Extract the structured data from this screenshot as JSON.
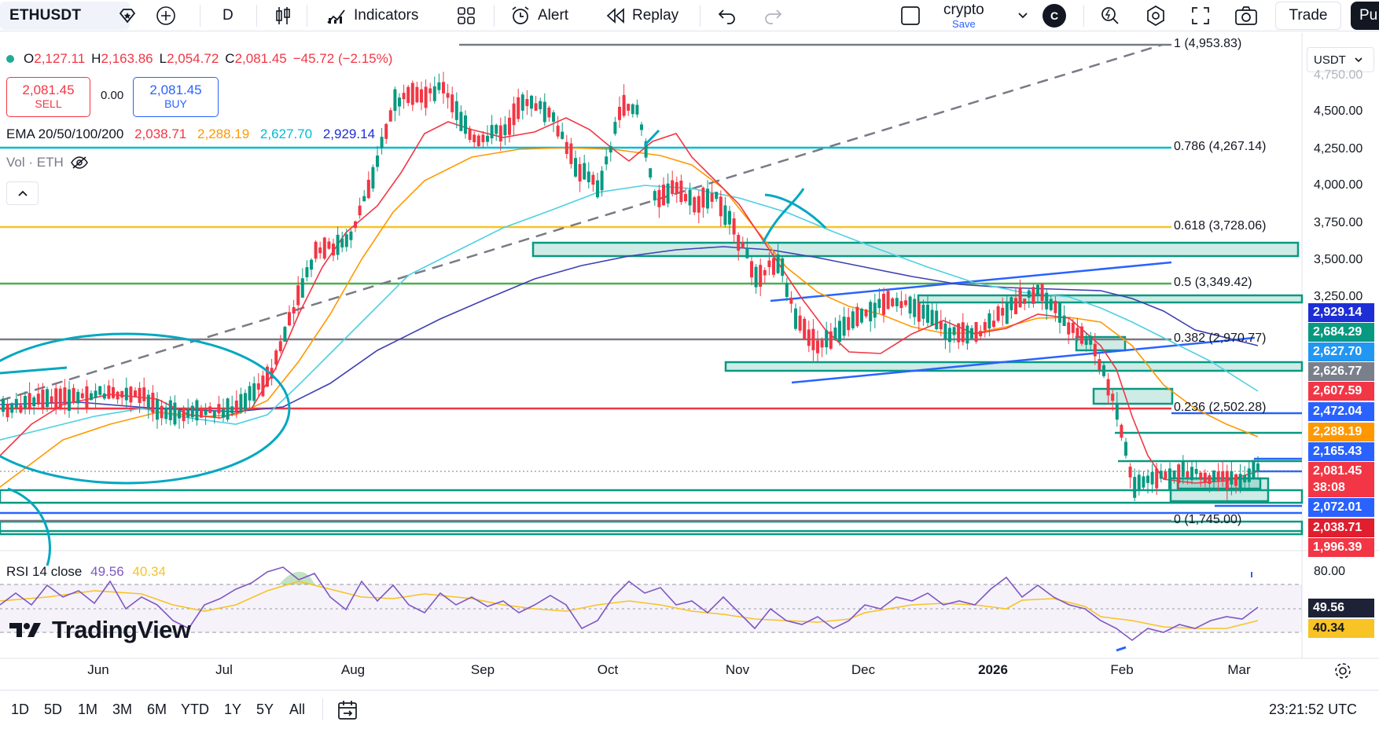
{
  "toolbar": {
    "symbol": "ETHUSDT",
    "interval": "D",
    "indicators_label": "Indicators",
    "alert_label": "Alert",
    "replay_label": "Replay",
    "layout_name": "crypto",
    "layout_save": "Save",
    "avatar_letter": "C",
    "trade_label": "Trade",
    "publish_label": "Pu"
  },
  "legend": {
    "open_label": "O",
    "open": "2,127.11",
    "high_label": "H",
    "high": "2,163.86",
    "low_label": "L",
    "low": "2,054.72",
    "close_label": "C",
    "close": "2,081.45",
    "change": "−45.72 (−2.15%)",
    "sell_price": "2,081.45",
    "sell_label": "SELL",
    "spread": "0.00",
    "buy_price": "2,081.45",
    "buy_label": "BUY",
    "ema_label": "EMA 20/50/100/200",
    "ema20": "2,038.71",
    "ema50": "2,288.19",
    "ema100": "2,627.70",
    "ema200": "2,929.14",
    "vol_label": "Vol · ETH"
  },
  "currency": "USDT",
  "price_axis": {
    "ticks": [
      "4,750.00",
      "4,500.00",
      "4,250.00",
      "4,000.00",
      "3,750.00",
      "3,500.00",
      "3,250.00",
      "80.00"
    ],
    "badges": [
      {
        "text": "2,929.14",
        "color": "#1e2ed6"
      },
      {
        "text": "2,684.29",
        "color": "#089981"
      },
      {
        "text": "2,627.70",
        "color": "#2196f3"
      },
      {
        "text": "2,626.77",
        "color": "#7a7f8c"
      },
      {
        "text": "2,607.59",
        "color": "#f23645"
      },
      {
        "text": "2,472.04",
        "color": "#2962ff"
      },
      {
        "text": "2,288.19",
        "color": "#ff9800"
      },
      {
        "text": "2,165.43",
        "color": "#2962ff"
      },
      {
        "text": "2,081.45",
        "color": "#f23645"
      },
      {
        "text": "38:08",
        "color": "#f23645"
      },
      {
        "text": "2,072.01",
        "color": "#2962ff"
      },
      {
        "text": "2,038.71",
        "color": "#e01e2e"
      },
      {
        "text": "1,996.39",
        "color": "#f23645"
      },
      {
        "text": "49.56",
        "color": "#1e2236"
      },
      {
        "text": "40.34",
        "color": "#f7c325"
      }
    ]
  },
  "fib_levels": [
    {
      "label": "1 (4,953.83)",
      "color": "#787b86"
    },
    {
      "label": "0.786 (4,267.14)",
      "color": "#00bcd4"
    },
    {
      "label": "0.618 (3,728.06)",
      "color": "#f7c325"
    },
    {
      "label": "0.5 (3,349.42)",
      "color": "#4caf50"
    },
    {
      "label": "0.382 (2,970.77)",
      "color": "#787b86"
    },
    {
      "label": "0.236 (2,502.28)",
      "color": "#f23645"
    },
    {
      "label": "0 (1,745.00)",
      "color": "#787b86"
    }
  ],
  "rsi": {
    "label": "RSI 14 close",
    "value": "49.56",
    "ma": "40.34"
  },
  "brand": "TradingView",
  "time_axis": {
    "labels": [
      "Jun",
      "Jul",
      "Aug",
      "Sep",
      "Oct",
      "Nov",
      "Dec",
      "2026",
      "Feb",
      "Mar"
    ]
  },
  "ranges": [
    "1D",
    "5D",
    "1M",
    "3M",
    "6M",
    "YTD",
    "1Y",
    "5Y",
    "All"
  ],
  "clock": "23:21:52 UTC",
  "chart_data": {
    "type": "candlestick",
    "symbol": "ETHUSDT",
    "interval": "D",
    "last": {
      "open": 2127.11,
      "high": 2163.86,
      "low": 2054.72,
      "close": 2081.45
    },
    "ylim": [
      1745,
      4953.83
    ],
    "fib_retracement": [
      {
        "ratio": 1,
        "price": 4953.83
      },
      {
        "ratio": 0.786,
        "price": 4267.14
      },
      {
        "ratio": 0.618,
        "price": 3728.06
      },
      {
        "ratio": 0.5,
        "price": 3349.42
      },
      {
        "ratio": 0.382,
        "price": 2970.77
      },
      {
        "ratio": 0.236,
        "price": 2502.28
      },
      {
        "ratio": 0,
        "price": 1745.0
      }
    ],
    "ema": {
      "ema20": 2038.71,
      "ema50": 2288.19,
      "ema100": 2627.7,
      "ema200": 2929.14
    },
    "rsi": {
      "value": 49.56,
      "ma": 40.34,
      "upper": 80
    }
  }
}
